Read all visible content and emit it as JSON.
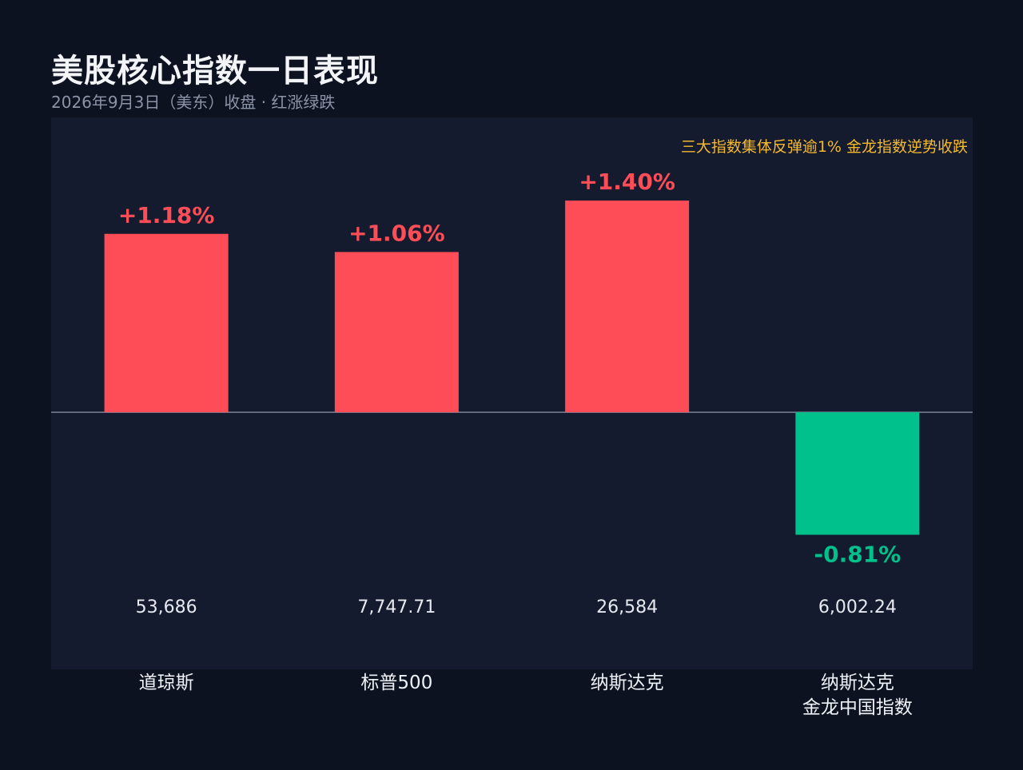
{
  "chart_data": {
    "type": "bar",
    "title": "美股核心指数一日表现",
    "subtitle": "2026年9月3日（美东）收盘 · 红涨绿跌",
    "annotation": "三大指数集体反弹逾1%  金龙指数逆势收跌",
    "categories": [
      "道琼斯",
      "标普500",
      "纳斯达克",
      "纳斯达克\n金龙中国指数"
    ],
    "values": [
      1.18,
      1.06,
      1.4,
      -0.81
    ],
    "value_labels": [
      "+1.18%",
      "+1.06%",
      "+1.40%",
      "-0.81%"
    ],
    "closing_levels": [
      "53,686",
      "7,747.71",
      "26,584",
      "6,002.24"
    ],
    "ylim": [
      -1.7,
      1.95
    ],
    "grid": false,
    "legend": "none",
    "colors": {
      "up": "#ff4d57",
      "down": "#00c08b",
      "zero_line": "#7b8599",
      "level_text": "#e6e9f0",
      "annotation": "#f4b92e"
    }
  }
}
